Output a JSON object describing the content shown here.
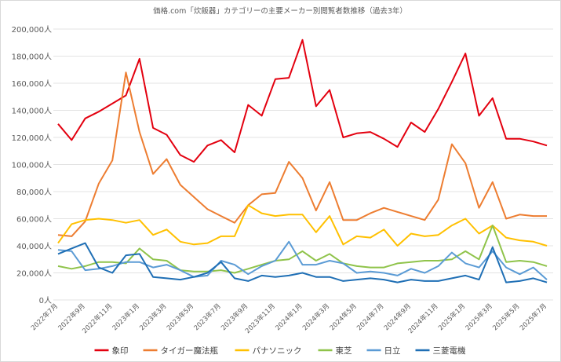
{
  "chart_data": {
    "type": "line",
    "title": "価格.com「炊飯器」カテゴリーの主要メーカー別閲覧者数推移（過去3年）",
    "xlabel": "",
    "ylabel": "",
    "ylim": [
      0,
      200000
    ],
    "ytick_step": 20000,
    "y_unit_suffix": "人",
    "grid": true,
    "legend_position": "bottom",
    "x": [
      "2022年7月",
      "2022年8月",
      "2022年9月",
      "2022年10月",
      "2022年11月",
      "2022年12月",
      "2023年1月",
      "2023年2月",
      "2023年3月",
      "2023年4月",
      "2023年5月",
      "2023年6月",
      "2023年7月",
      "2023年8月",
      "2023年9月",
      "2023年10月",
      "2023年11月",
      "2023年12月",
      "2024年1月",
      "2024年2月",
      "2024年3月",
      "2024年4月",
      "2024年5月",
      "2024年6月",
      "2024年7月",
      "2024年8月",
      "2024年9月",
      "2024年10月",
      "2024年11月",
      "2024年12月",
      "2025年1月",
      "2025年2月",
      "2025年3月",
      "2025年4月",
      "2025年5月",
      "2025年6月",
      "2025年7月"
    ],
    "x_tick_labels": [
      "2022年7月",
      "2022年9月",
      "2022年11月",
      "2023年1月",
      "2023年3月",
      "2023年5月",
      "2023年7月",
      "2023年9月",
      "2023年11月",
      "2024年1月",
      "2024年3月",
      "2024年5月",
      "2024年7月",
      "2024年9月",
      "2024年11月",
      "2025年1月",
      "2025年3月",
      "2025年5月",
      "2025年7月"
    ],
    "series": [
      {
        "name": "象印",
        "color": "#e3000f",
        "values": [
          130000,
          118000,
          134000,
          139000,
          145000,
          151000,
          178000,
          127000,
          122000,
          107000,
          102000,
          114000,
          118000,
          109000,
          144000,
          136000,
          163000,
          164000,
          192000,
          143000,
          155000,
          120000,
          123000,
          124000,
          119000,
          113000,
          131000,
          124000,
          141000,
          161000,
          182000,
          136000,
          149000,
          119000,
          119000,
          117000,
          114000
        ]
      },
      {
        "name": "タイガー魔法瓶",
        "color": "#ed7d31",
        "values": [
          48000,
          47000,
          58000,
          86000,
          103000,
          168000,
          124000,
          93000,
          104000,
          85000,
          76000,
          67000,
          62000,
          57000,
          70000,
          78000,
          79000,
          102000,
          90000,
          66000,
          87000,
          59000,
          59000,
          64000,
          68000,
          65000,
          62000,
          59000,
          74000,
          115000,
          101000,
          68000,
          87000,
          60000,
          63000,
          62000,
          62000
        ]
      },
      {
        "name": "パナソニック",
        "color": "#ffc000",
        "values": [
          42000,
          56000,
          59000,
          60000,
          59000,
          57000,
          59000,
          48000,
          52000,
          43000,
          41000,
          42000,
          47000,
          47000,
          70000,
          64000,
          62000,
          63000,
          63000,
          50000,
          62000,
          41000,
          47000,
          46000,
          52000,
          40000,
          49000,
          47000,
          48000,
          55000,
          60000,
          49000,
          55000,
          46000,
          44000,
          43000,
          40000
        ]
      },
      {
        "name": "東芝",
        "color": "#8fc34a",
        "values": [
          25000,
          23000,
          25000,
          28000,
          28000,
          27000,
          38000,
          30000,
          29000,
          22000,
          21000,
          21000,
          22000,
          20000,
          23000,
          26000,
          29000,
          30000,
          36000,
          29000,
          34000,
          27000,
          25000,
          24000,
          24000,
          27000,
          28000,
          29000,
          29000,
          30000,
          36000,
          30000,
          55000,
          28000,
          29000,
          28000,
          25000
        ]
      },
      {
        "name": "日立",
        "color": "#5b9bd5",
        "values": [
          37000,
          36000,
          22000,
          23000,
          25000,
          28000,
          28000,
          24000,
          26000,
          22000,
          17000,
          18000,
          29000,
          26000,
          19000,
          25000,
          29000,
          43000,
          26000,
          26000,
          29000,
          27000,
          20000,
          21000,
          20000,
          18000,
          23000,
          20000,
          25000,
          35000,
          27000,
          24000,
          36000,
          24000,
          19000,
          24000,
          15000
        ]
      },
      {
        "name": "三菱電機",
        "color": "#1f6fb5",
        "values": [
          34000,
          38000,
          42000,
          24000,
          20000,
          33000,
          34000,
          17000,
          16000,
          15000,
          17000,
          20000,
          28000,
          16000,
          14000,
          18000,
          17000,
          18000,
          20000,
          17000,
          17000,
          14000,
          15000,
          16000,
          15000,
          13000,
          15000,
          14000,
          14000,
          16000,
          18000,
          15000,
          39000,
          13000,
          14000,
          16000,
          13000
        ]
      }
    ]
  }
}
